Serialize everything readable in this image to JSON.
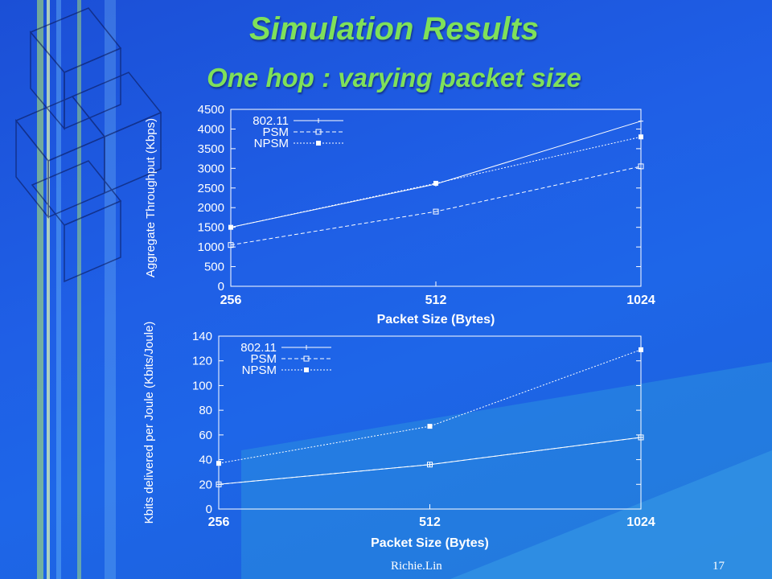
{
  "slide": {
    "title": "Simulation Results",
    "subtitle": "One hop : varying packet size",
    "footer_author": "Richie.Lin",
    "page_number": "17",
    "title_color": "#7fe05a",
    "background_color": "#1f5fe6"
  },
  "chart_data": [
    {
      "type": "line",
      "title": "",
      "xlabel": "Packet Size (Bytes)",
      "ylabel": "Aggregate Throughput (Kbps)",
      "categories": [
        "256",
        "512",
        "1024"
      ],
      "ylim": [
        0,
        4500
      ],
      "yticks": [
        0,
        500,
        1000,
        1500,
        2000,
        2500,
        3000,
        3500,
        4000,
        4500
      ],
      "grid": false,
      "legend_position": "top-left",
      "series": [
        {
          "name": "802.11",
          "values": [
            1500,
            2600,
            4200
          ],
          "marker": "plus"
        },
        {
          "name": "PSM",
          "values": [
            1050,
            1900,
            3050
          ],
          "marker": "open-square"
        },
        {
          "name": "NPSM",
          "values": [
            1500,
            2620,
            3800
          ],
          "marker": "filled-square"
        }
      ]
    },
    {
      "type": "line",
      "title": "",
      "xlabel": "Packet Size (Bytes)",
      "ylabel": "Kbits delivered per Joule (Kbits/Joule)",
      "categories": [
        "256",
        "512",
        "1024"
      ],
      "ylim": [
        0,
        140
      ],
      "yticks": [
        0,
        20,
        40,
        60,
        80,
        100,
        120,
        140
      ],
      "grid": false,
      "legend_position": "top-left",
      "series": [
        {
          "name": "802.11",
          "values": [
            20,
            36,
            58
          ],
          "marker": "plus"
        },
        {
          "name": "PSM",
          "values": [
            20,
            36,
            58
          ],
          "marker": "open-square"
        },
        {
          "name": "NPSM",
          "values": [
            37,
            67,
            129
          ],
          "marker": "filled-square"
        }
      ]
    }
  ]
}
